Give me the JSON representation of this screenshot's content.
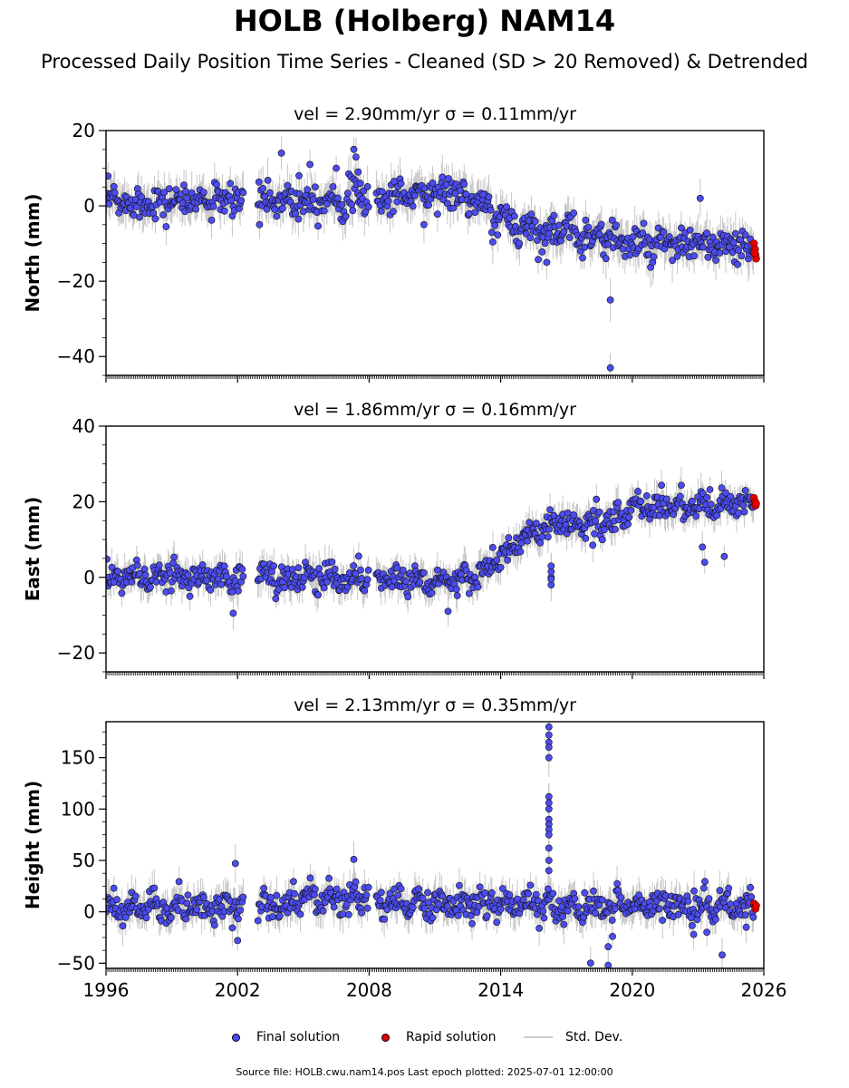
{
  "title": "HOLB (Holberg) NAM14",
  "subtitle": "Processed Daily Position Time Series - Cleaned (SD > 20 Removed) & Detrended",
  "legend": {
    "final": "Final solution",
    "rapid": "Rapid solution",
    "std": "Std. Dev."
  },
  "source": "Source file: HOLB.cwu.nam14.pos  Last epoch plotted: 2025-07-01 12:00:00",
  "colors": {
    "final": "#4c4cf0",
    "rapid": "#e00000",
    "std": "#b8b8b8",
    "edge": "#111111"
  },
  "chart_data": [
    {
      "type": "scatter",
      "title": "vel = 2.90mm/yr   σ = 0.11mm/yr",
      "ylabel": "North (mm)",
      "xlim": [
        1996,
        2026
      ],
      "ylim": [
        -45,
        20
      ],
      "yticks": [
        -40,
        -20,
        0,
        20
      ],
      "xticks": [
        1996,
        2002,
        2008,
        2014,
        2020,
        2026
      ],
      "trend": [
        [
          1996,
          1
        ],
        [
          2008,
          2
        ],
        [
          2011.5,
          4
        ],
        [
          2012.5,
          2
        ],
        [
          2013.8,
          -3
        ],
        [
          2015.2,
          -6
        ],
        [
          2017,
          -7
        ],
        [
          2018.8,
          -8
        ],
        [
          2019.8,
          -10
        ],
        [
          2021.5,
          -11
        ],
        [
          2023,
          -10
        ],
        [
          2025.5,
          -12
        ]
      ],
      "noise": 2.2,
      "outliers": [
        [
          2004,
          14
        ],
        [
          2004.8,
          8
        ],
        [
          2005.3,
          11
        ],
        [
          2006.5,
          10
        ],
        [
          2007.3,
          15
        ],
        [
          2007.4,
          13
        ],
        [
          2007.5,
          9
        ],
        [
          2007.6,
          6
        ],
        [
          2013.2,
          3
        ],
        [
          2019,
          -25
        ],
        [
          2019,
          -43
        ],
        [
          2018.8,
          -14
        ],
        [
          2023.1,
          2
        ],
        [
          2016.1,
          -15
        ],
        [
          2003,
          -5
        ],
        [
          2010.5,
          -5
        ]
      ],
      "rapid": [
        [
          2025.55,
          -10
        ],
        [
          2025.6,
          -11.5
        ],
        [
          2025.62,
          -13
        ],
        [
          2025.65,
          -14
        ],
        [
          2025.58,
          -12.5
        ]
      ]
    },
    {
      "type": "scatter",
      "title": "vel = 1.86mm/yr   σ = 0.16mm/yr",
      "ylabel": "East (mm)",
      "xlim": [
        1996,
        2026
      ],
      "ylim": [
        -25,
        40
      ],
      "yticks": [
        -20,
        0,
        20,
        40
      ],
      "xticks": [
        1996,
        2002,
        2008,
        2014,
        2020,
        2026
      ],
      "trend": [
        [
          1996,
          0
        ],
        [
          2008,
          0
        ],
        [
          2012.5,
          -1
        ],
        [
          2013.3,
          2
        ],
        [
          2014.2,
          6
        ],
        [
          2015,
          10
        ],
        [
          2016,
          13
        ],
        [
          2019.3,
          15
        ],
        [
          2020.2,
          19
        ],
        [
          2025.6,
          19
        ]
      ],
      "noise": 1.8,
      "outliers": [
        [
          2016.3,
          0
        ],
        [
          2016.3,
          -2
        ],
        [
          2016.3,
          1.5
        ],
        [
          2016.3,
          -0.5
        ],
        [
          2016.3,
          3
        ],
        [
          2001.8,
          -9.5
        ],
        [
          2011.6,
          -9
        ],
        [
          2023.2,
          8
        ],
        [
          2023.3,
          4
        ],
        [
          2024.2,
          5.5
        ],
        [
          2018.2,
          8.5
        ]
      ],
      "rapid": [
        [
          2025.55,
          21
        ],
        [
          2025.6,
          20
        ],
        [
          2025.62,
          19
        ],
        [
          2025.65,
          19.5
        ]
      ]
    },
    {
      "type": "scatter",
      "title": "vel = 2.13mm/yr   σ = 0.35mm/yr",
      "ylabel": "Height (mm)",
      "xlim": [
        1996,
        2026
      ],
      "ylim": [
        -55,
        185
      ],
      "yticks": [
        -50,
        0,
        50,
        100,
        150
      ],
      "xticks": [
        1996,
        2002,
        2008,
        2014,
        2020,
        2026
      ],
      "trend": [
        [
          1996,
          5
        ],
        [
          2002,
          3
        ],
        [
          2003,
          5
        ],
        [
          2007.5,
          15
        ],
        [
          2008.3,
          8
        ],
        [
          2025.6,
          6
        ]
      ],
      "noise": 7,
      "outliers": [
        [
          2016.2,
          180
        ],
        [
          2016.2,
          172
        ],
        [
          2016.2,
          165
        ],
        [
          2016.2,
          160
        ],
        [
          2016.2,
          150
        ],
        [
          2016.2,
          112
        ],
        [
          2016.2,
          106
        ],
        [
          2016.2,
          100
        ],
        [
          2016.2,
          90
        ],
        [
          2016.2,
          85
        ],
        [
          2016.2,
          80
        ],
        [
          2016.2,
          75
        ],
        [
          2016.2,
          62
        ],
        [
          2016.2,
          50
        ],
        [
          2016.2,
          40
        ],
        [
          2001.9,
          47
        ],
        [
          2007.3,
          51
        ],
        [
          2018.1,
          -50
        ],
        [
          2018.9,
          -52
        ],
        [
          2018.9,
          -34
        ],
        [
          2019.1,
          -24
        ],
        [
          2024.1,
          -42
        ],
        [
          2022.8,
          -22
        ],
        [
          2023.4,
          -20
        ],
        [
          2025.2,
          -15
        ],
        [
          2002,
          -28
        ]
      ],
      "rapid": [
        [
          2025.55,
          8
        ],
        [
          2025.6,
          5
        ],
        [
          2025.62,
          3
        ],
        [
          2025.65,
          6
        ]
      ]
    }
  ]
}
